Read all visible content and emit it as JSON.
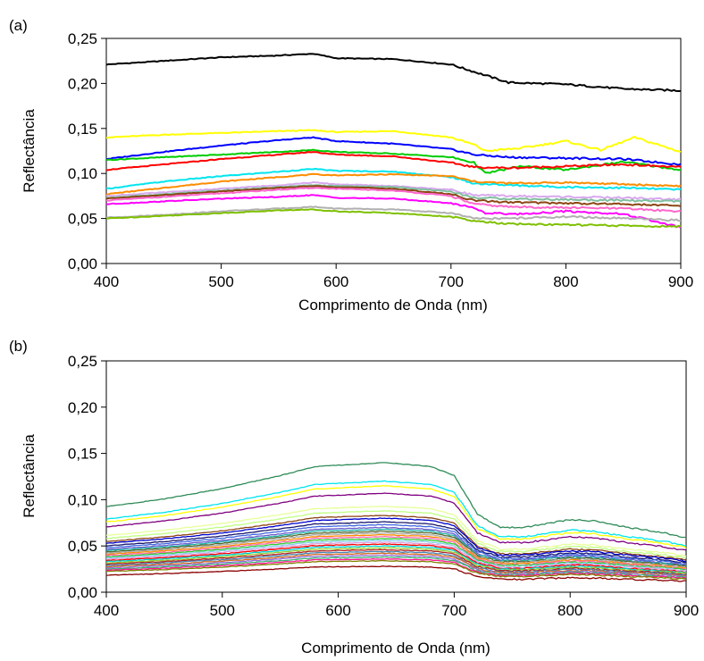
{
  "chart_data": [
    {
      "type": "line",
      "panel_label": "(a)",
      "xlabel": "Comprimento de Onda (nm)",
      "ylabel": "Reflectância",
      "xlim": [
        400,
        900
      ],
      "ylim": [
        0,
        0.25
      ],
      "xticks": [
        400,
        500,
        600,
        700,
        800,
        900
      ],
      "yticks": [
        0,
        0.05,
        0.1,
        0.15,
        0.2,
        0.25
      ],
      "xtick_labels": [
        "400",
        "500",
        "600",
        "700",
        "800",
        "900"
      ],
      "ytick_labels": [
        "0,00",
        "0,05",
        "0,10",
        "0,15",
        "0,20",
        "0,25"
      ],
      "grid": false,
      "legend": "none",
      "series": [
        {
          "color": "#000000",
          "x": [
            400,
            450,
            500,
            550,
            580,
            600,
            650,
            700,
            720,
            750,
            800,
            850,
            900
          ],
          "y": [
            0.221,
            0.225,
            0.229,
            0.231,
            0.233,
            0.228,
            0.227,
            0.221,
            0.213,
            0.201,
            0.199,
            0.194,
            0.192
          ]
        },
        {
          "color": "#ffff00",
          "x": [
            400,
            450,
            500,
            550,
            580,
            600,
            650,
            700,
            720,
            730,
            760,
            800,
            830,
            860,
            900
          ],
          "y": [
            0.14,
            0.143,
            0.145,
            0.147,
            0.148,
            0.146,
            0.147,
            0.14,
            0.132,
            0.125,
            0.128,
            0.136,
            0.126,
            0.14,
            0.124
          ]
        },
        {
          "color": "#0000ff",
          "x": [
            400,
            450,
            500,
            550,
            580,
            600,
            650,
            700,
            720,
            750,
            800,
            850,
            900
          ],
          "y": [
            0.116,
            0.124,
            0.131,
            0.137,
            0.14,
            0.136,
            0.133,
            0.127,
            0.121,
            0.118,
            0.117,
            0.116,
            0.11
          ]
        },
        {
          "color": "#00cc00",
          "x": [
            400,
            450,
            500,
            550,
            580,
            600,
            650,
            700,
            720,
            730,
            760,
            800,
            850,
            900
          ],
          "y": [
            0.115,
            0.118,
            0.121,
            0.124,
            0.126,
            0.124,
            0.122,
            0.118,
            0.112,
            0.1,
            0.108,
            0.104,
            0.113,
            0.104
          ]
        },
        {
          "color": "#ff0000",
          "x": [
            400,
            450,
            500,
            550,
            580,
            600,
            650,
            700,
            720,
            750,
            800,
            850,
            900
          ],
          "y": [
            0.104,
            0.11,
            0.116,
            0.121,
            0.124,
            0.121,
            0.119,
            0.112,
            0.107,
            0.106,
            0.108,
            0.11,
            0.107
          ]
        },
        {
          "color": "#00e5ee",
          "x": [
            400,
            450,
            500,
            550,
            580,
            600,
            650,
            700,
            720,
            750,
            800,
            850,
            900
          ],
          "y": [
            0.083,
            0.091,
            0.097,
            0.102,
            0.105,
            0.103,
            0.102,
            0.096,
            0.089,
            0.087,
            0.085,
            0.084,
            0.082
          ]
        },
        {
          "color": "#ff8c00",
          "x": [
            400,
            450,
            500,
            550,
            580,
            600,
            650,
            700,
            720,
            750,
            800,
            850,
            900
          ],
          "y": [
            0.077,
            0.084,
            0.091,
            0.096,
            0.099,
            0.098,
            0.099,
            0.097,
            0.091,
            0.089,
            0.09,
            0.088,
            0.086
          ]
        },
        {
          "color": "#d8a8ee",
          "x": [
            400,
            450,
            500,
            550,
            580,
            600,
            650,
            700,
            720,
            750,
            800,
            850,
            900
          ],
          "y": [
            0.075,
            0.079,
            0.083,
            0.087,
            0.09,
            0.088,
            0.086,
            0.082,
            0.076,
            0.075,
            0.074,
            0.073,
            0.071
          ]
        },
        {
          "color": "#7fbf9f",
          "x": [
            400,
            450,
            500,
            550,
            580,
            600,
            650,
            700,
            720,
            750,
            800,
            850,
            900
          ],
          "y": [
            0.073,
            0.077,
            0.081,
            0.085,
            0.087,
            0.086,
            0.085,
            0.08,
            0.073,
            0.072,
            0.071,
            0.07,
            0.069
          ]
        },
        {
          "color": "#8b4513",
          "x": [
            400,
            450,
            500,
            550,
            580,
            600,
            650,
            700,
            720,
            750,
            800,
            850,
            900
          ],
          "y": [
            0.072,
            0.076,
            0.08,
            0.084,
            0.086,
            0.085,
            0.083,
            0.077,
            0.07,
            0.068,
            0.067,
            0.066,
            0.064
          ]
        },
        {
          "color": "#ff66cc",
          "x": [
            400,
            450,
            500,
            550,
            580,
            600,
            650,
            700,
            720,
            750,
            800,
            850,
            900
          ],
          "y": [
            0.07,
            0.074,
            0.078,
            0.082,
            0.084,
            0.083,
            0.081,
            0.075,
            0.066,
            0.063,
            0.062,
            0.061,
            0.058
          ]
        },
        {
          "color": "#ff00ff",
          "x": [
            400,
            450,
            500,
            550,
            580,
            600,
            650,
            700,
            720,
            730,
            760,
            800,
            850,
            900
          ],
          "y": [
            0.066,
            0.069,
            0.072,
            0.074,
            0.076,
            0.073,
            0.072,
            0.067,
            0.062,
            0.056,
            0.055,
            0.058,
            0.055,
            0.04
          ]
        },
        {
          "color": "#b0b0b0",
          "x": [
            400,
            450,
            500,
            550,
            580,
            600,
            650,
            700,
            720,
            750,
            800,
            850,
            900
          ],
          "y": [
            0.051,
            0.054,
            0.058,
            0.061,
            0.063,
            0.061,
            0.06,
            0.056,
            0.05,
            0.05,
            0.052,
            0.05,
            0.048
          ]
        },
        {
          "color": "#7ec000",
          "x": [
            400,
            450,
            500,
            550,
            580,
            600,
            650,
            700,
            720,
            750,
            800,
            850,
            900
          ],
          "y": [
            0.05,
            0.053,
            0.056,
            0.059,
            0.06,
            0.058,
            0.056,
            0.052,
            0.047,
            0.044,
            0.043,
            0.042,
            0.041
          ]
        }
      ]
    },
    {
      "type": "line",
      "panel_label": "(b)",
      "xlabel": "Comprimento de Onda (nm)",
      "ylabel": "Reflectância",
      "xlim": [
        400,
        900
      ],
      "ylim": [
        0,
        0.25
      ],
      "xticks": [
        400,
        500,
        600,
        700,
        800,
        900
      ],
      "yticks": [
        0,
        0.05,
        0.1,
        0.15,
        0.2,
        0.25
      ],
      "xtick_labels": [
        "400",
        "500",
        "600",
        "700",
        "800",
        "900"
      ],
      "ytick_labels": [
        "0,00",
        "0,05",
        "0,10",
        "0,15",
        "0,20",
        "0,25"
      ],
      "grid": false,
      "legend": "none",
      "shape_x": [
        400,
        450,
        500,
        550,
        580,
        600,
        640,
        680,
        700,
        720,
        740,
        760,
        780,
        800,
        820,
        850,
        880,
        900
      ],
      "shape": [
        0.66,
        0.72,
        0.8,
        0.9,
        0.97,
        0.98,
        1.0,
        0.97,
        0.9,
        0.6,
        0.5,
        0.5,
        0.53,
        0.56,
        0.55,
        0.5,
        0.46,
        0.42
      ],
      "series": [
        {
          "color": "#2e8b57",
          "peak": 0.14
        },
        {
          "color": "#00e5ee",
          "peak": 0.12
        },
        {
          "color": "#ffff00",
          "peak": 0.115
        },
        {
          "color": "#800080",
          "peak": 0.107
        },
        {
          "color": "#e6ff99",
          "peak": 0.093
        },
        {
          "color": "#c0ff80",
          "peak": 0.088
        },
        {
          "color": "#8b4513",
          "peak": 0.083
        },
        {
          "color": "#0000cd",
          "peak": 0.08
        },
        {
          "color": "#191970",
          "peak": 0.076
        },
        {
          "color": "#4169e1",
          "peak": 0.073
        },
        {
          "color": "#6a5acd",
          "peak": 0.07
        },
        {
          "color": "#20b2aa",
          "peak": 0.068
        },
        {
          "color": "#556b2f",
          "peak": 0.066
        },
        {
          "color": "#a9a9a9",
          "peak": 0.064
        },
        {
          "color": "#ff8c00",
          "peak": 0.062
        },
        {
          "color": "#ff69b4",
          "peak": 0.06
        },
        {
          "color": "#32cd32",
          "peak": 0.058
        },
        {
          "color": "#87ceeb",
          "peak": 0.056
        },
        {
          "color": "#dda0dd",
          "peak": 0.054
        },
        {
          "color": "#ff0000",
          "peak": 0.052
        },
        {
          "color": "#00ced1",
          "peak": 0.05
        },
        {
          "color": "#9acd32",
          "peak": 0.048
        },
        {
          "color": "#b22222",
          "peak": 0.046
        },
        {
          "color": "#4682b4",
          "peak": 0.044
        },
        {
          "color": "#d2691e",
          "peak": 0.042
        },
        {
          "color": "#9370db",
          "peak": 0.04
        },
        {
          "color": "#3cb371",
          "peak": 0.038
        },
        {
          "color": "#ff1493",
          "peak": 0.036
        },
        {
          "color": "#808000",
          "peak": 0.034
        },
        {
          "color": "#8b0000",
          "peak": 0.028
        }
      ]
    }
  ]
}
